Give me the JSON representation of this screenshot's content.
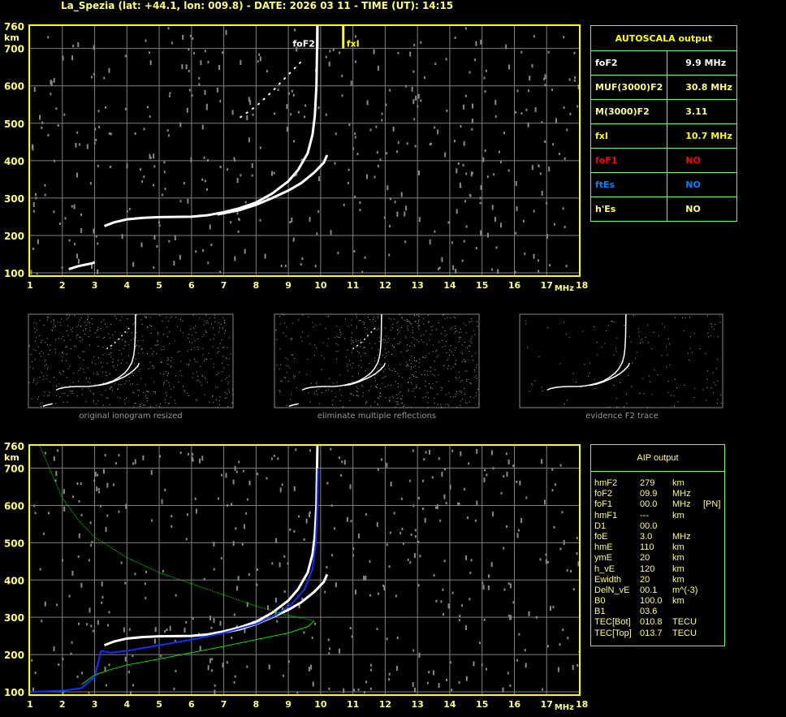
{
  "title": "La_Spezia (lat: +44.1, lon: 009.8) - DATE: 2026 03 11 - TIME (UT): 14:15",
  "colors": {
    "axis": "#ffff00",
    "grid": "#808080",
    "trace": "#ffffff",
    "fxI": "#ffff00",
    "model": "#00e000",
    "aip_trace": "#0000ff",
    "table_border": "#66ff66"
  },
  "autoscala": {
    "header": "AUTOSCALA output",
    "rows": [
      {
        "label": "foF2",
        "value": "9.9 MHz",
        "color": "#ffffff"
      },
      {
        "label": "MUF(3000)F2",
        "value": "30.8 MHz",
        "color": "#ffff80"
      },
      {
        "label": "M(3000)F2",
        "value": "3.11",
        "color": "#ffff80"
      },
      {
        "label": "fxI",
        "value": "10.7 MHz",
        "color": "#ffff00"
      },
      {
        "label": "foF1",
        "value": "NO",
        "color": "#ff0000"
      },
      {
        "label": "ftEs",
        "value": "NO",
        "color": "#0080ff"
      },
      {
        "label": "h'Es",
        "value": "NO",
        "color": "#ffff80"
      }
    ]
  },
  "aip": {
    "header": "AIP output",
    "rows": [
      [
        "hmF2",
        "279",
        "km",
        ""
      ],
      [
        "foF2",
        "09.9",
        "MHz",
        ""
      ],
      [
        "foF1",
        "00.0",
        "MHz",
        "[PN]"
      ],
      [
        "hmF1",
        "---",
        "km",
        ""
      ],
      [
        "D1",
        "00.0",
        "",
        ""
      ],
      [
        "foE",
        "3.0",
        "MHz",
        ""
      ],
      [
        "hmE",
        "110",
        "km",
        ""
      ],
      [
        "ymE",
        "20",
        "km",
        ""
      ],
      [
        "h_vE",
        "120",
        "km",
        ""
      ],
      [
        "Ewidth",
        "20",
        "km",
        ""
      ],
      [
        "DelN_vE",
        "00.1",
        "m^(-3)",
        ""
      ],
      [
        "B0",
        "100.0",
        "km",
        ""
      ],
      [
        "B1",
        "03.6",
        "",
        ""
      ],
      [
        "TEC[Bot]",
        "010.8",
        "TECU",
        ""
      ],
      [
        "TEC[Top]",
        "013.7",
        "TECU",
        ""
      ]
    ]
  },
  "thumbnails": [
    {
      "caption": "original ionogram resized"
    },
    {
      "caption": "eliminate multiple reflections"
    },
    {
      "caption": "evidence F2 trace"
    }
  ],
  "chart_data": [
    {
      "type": "scatter",
      "xlabel": "MHz",
      "ylabel": "km",
      "xlim": [
        1,
        18
      ],
      "ylim": [
        100,
        760
      ],
      "xticks": [
        "1",
        "2",
        "3",
        "4",
        "5",
        "6",
        "7",
        "8",
        "9",
        "10",
        "11",
        "12",
        "13",
        "14",
        "15",
        "16",
        "17",
        "18"
      ],
      "yticks": [
        "760",
        "700",
        "600",
        "500",
        "400",
        "300",
        "200",
        "100"
      ],
      "grid": true,
      "markers": [
        {
          "label": "foF2",
          "x": 9.9
        },
        {
          "label": "fxI",
          "x": 10.7
        }
      ],
      "series": [
        {
          "id": "o_trace",
          "points": [
            [
              3.3,
              225
            ],
            [
              3.6,
              235
            ],
            [
              4,
              243
            ],
            [
              4.5,
              247
            ],
            [
              5,
              249
            ],
            [
              6,
              250
            ],
            [
              6.5,
              254
            ],
            [
              7,
              262
            ],
            [
              7.5,
              273
            ],
            [
              8,
              288
            ],
            [
              8.5,
              312
            ],
            [
              9,
              345
            ],
            [
              9.3,
              375
            ],
            [
              9.6,
              420
            ],
            [
              9.75,
              470
            ],
            [
              9.82,
              520
            ],
            [
              9.87,
              600
            ],
            [
              9.9,
              760
            ]
          ]
        },
        {
          "id": "x_trace",
          "points": [
            [
              6.8,
              256
            ],
            [
              7.5,
              268
            ],
            [
              8,
              282
            ],
            [
              8.5,
              300
            ],
            [
              9,
              320
            ],
            [
              9.4,
              340
            ],
            [
              9.8,
              368
            ],
            [
              10.1,
              395
            ],
            [
              10.2,
              415
            ]
          ]
        },
        {
          "id": "e_trace",
          "points": [
            [
              2.2,
              110
            ],
            [
              2.5,
              118
            ],
            [
              2.9,
              125
            ],
            [
              3,
              128
            ]
          ]
        },
        {
          "id": "second_hop",
          "points": [
            [
              7.5,
              515
            ],
            [
              8,
              545
            ],
            [
              8.5,
              585
            ],
            [
              9,
              630
            ],
            [
              9.4,
              665
            ]
          ]
        }
      ]
    },
    {
      "type": "scatter",
      "xlabel": "MHz",
      "ylabel": "km",
      "xlim": [
        1,
        18
      ],
      "ylim": [
        100,
        760
      ],
      "xticks": [
        "1",
        "2",
        "3",
        "4",
        "5",
        "6",
        "7",
        "8",
        "9",
        "10",
        "11",
        "12",
        "13",
        "14",
        "15",
        "16",
        "17",
        "18"
      ],
      "yticks": [
        "760",
        "700",
        "600",
        "500",
        "400",
        "300",
        "200",
        "100"
      ],
      "grid": true,
      "series": [
        {
          "id": "o_trace",
          "points": [
            [
              3.3,
              225
            ],
            [
              3.6,
              235
            ],
            [
              4,
              243
            ],
            [
              4.5,
              247
            ],
            [
              5,
              249
            ],
            [
              6,
              250
            ],
            [
              6.5,
              254
            ],
            [
              7,
              262
            ],
            [
              7.5,
              273
            ],
            [
              8,
              288
            ],
            [
              8.5,
              312
            ],
            [
              9,
              345
            ],
            [
              9.3,
              375
            ],
            [
              9.6,
              420
            ],
            [
              9.75,
              470
            ],
            [
              9.82,
              520
            ],
            [
              9.87,
              600
            ],
            [
              9.9,
              760
            ]
          ]
        },
        {
          "id": "x_trace",
          "points": [
            [
              6.8,
              256
            ],
            [
              7.5,
              268
            ],
            [
              8,
              282
            ],
            [
              8.5,
              300
            ],
            [
              9,
              320
            ],
            [
              9.4,
              340
            ],
            [
              9.8,
              368
            ],
            [
              10.1,
              395
            ],
            [
              10.2,
              415
            ]
          ]
        },
        {
          "id": "aip_profile",
          "points": [
            [
              1,
              100
            ],
            [
              2,
              103
            ],
            [
              2.6,
              110
            ],
            [
              3,
              140
            ],
            [
              3.2,
              210
            ],
            [
              3.5,
              205
            ],
            [
              4,
              210
            ],
            [
              5,
              225
            ],
            [
              6,
              240
            ],
            [
              7,
              258
            ],
            [
              8,
              282
            ],
            [
              8.6,
              305
            ],
            [
              9.1,
              335
            ],
            [
              9.5,
              375
            ],
            [
              9.75,
              430
            ],
            [
              9.85,
              500
            ],
            [
              9.9,
              600
            ],
            [
              9.92,
              700
            ]
          ]
        },
        {
          "id": "model_topside",
          "points": [
            [
              1.3,
              760
            ],
            [
              1.6,
              700
            ],
            [
              2,
              620
            ],
            [
              2.5,
              560
            ],
            [
              3,
              515
            ],
            [
              4,
              460
            ],
            [
              5,
              420
            ],
            [
              6,
              390
            ],
            [
              7,
              360
            ],
            [
              8,
              330
            ],
            [
              9,
              305
            ],
            [
              9.6,
              295
            ],
            [
              9.8,
              290
            ]
          ]
        },
        {
          "id": "model_bottomside",
          "points": [
            [
              2.6,
              120
            ],
            [
              3,
              145
            ],
            [
              3.5,
              160
            ],
            [
              4,
              172
            ],
            [
              5,
              188
            ],
            [
              6,
              205
            ],
            [
              7,
              222
            ],
            [
              8,
              240
            ],
            [
              9,
              258
            ],
            [
              9.6,
              275
            ],
            [
              9.8,
              290
            ]
          ]
        }
      ]
    }
  ]
}
